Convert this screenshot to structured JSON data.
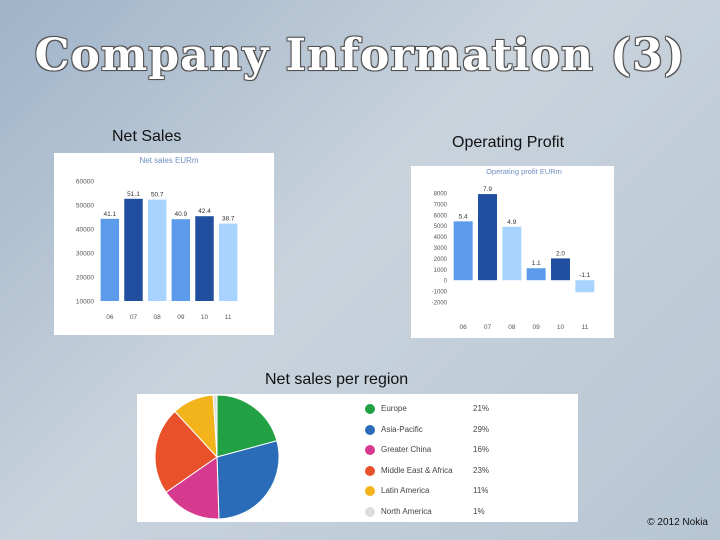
{
  "slide": {
    "title": "Company Information (3)",
    "footer": "© 2012 Nokia"
  },
  "labels": {
    "net_sales": "Net Sales",
    "operating_profit": "Operating Profit",
    "region": "Net sales per region"
  },
  "chart_data": [
    {
      "type": "bar",
      "title": "Net sales EURm",
      "categories": [
        "06",
        "07",
        "08",
        "09",
        "10",
        "11"
      ],
      "values": [
        41.1,
        51.1,
        50.7,
        40.9,
        42.4,
        38.7
      ],
      "value_labels": [
        "41.1",
        "51.1",
        "50.7",
        "40.9",
        "42.4",
        "38.7"
      ],
      "y_ticks": [
        "60000",
        "50000",
        "40000",
        "30000",
        "20000",
        "10000"
      ],
      "ylim": [
        0,
        60
      ],
      "colors": [
        "#5b9bea",
        "#1f4f9e",
        "#a9d3ff",
        "#5b9bea",
        "#1f4f9e",
        "#a9d3ff"
      ]
    },
    {
      "type": "bar",
      "title": "Operating profit EURm",
      "categories": [
        "06",
        "07",
        "08",
        "09",
        "10",
        "11"
      ],
      "values": [
        5.4,
        7.9,
        4.9,
        1.1,
        2.0,
        -1.1
      ],
      "value_labels": [
        "5.4",
        "7.9",
        "4.9",
        "1.1",
        "2.0",
        "-1.1"
      ],
      "y_ticks": [
        "8000",
        "7000",
        "6000",
        "5000",
        "4000",
        "3000",
        "2000",
        "1000",
        "0",
        "-1000",
        "-2000"
      ],
      "ylim": [
        -2,
        8
      ],
      "colors": [
        "#5b9bea",
        "#1f4f9e",
        "#a9d3ff",
        "#5b9bea",
        "#1f4f9e",
        "#a9d3ff"
      ]
    },
    {
      "type": "pie",
      "title": "",
      "slices": [
        {
          "name": "Europe",
          "pct_label": "21%",
          "value": 21,
          "color": "#22a044"
        },
        {
          "name": "Asia-Pacific",
          "pct_label": "29%",
          "value": 29,
          "color": "#2b6cb8"
        },
        {
          "name": "Greater China",
          "pct_label": "16%",
          "value": 16,
          "color": "#d63a8e"
        },
        {
          "name": "Middle East & Africa",
          "pct_label": "23%",
          "value": 23,
          "color": "#e8512a"
        },
        {
          "name": "Latin America",
          "pct_label": "11%",
          "value": 11,
          "color": "#f2b31b"
        },
        {
          "name": "North America",
          "pct_label": "1%",
          "value": 1,
          "color": "#dddddd"
        }
      ]
    }
  ]
}
